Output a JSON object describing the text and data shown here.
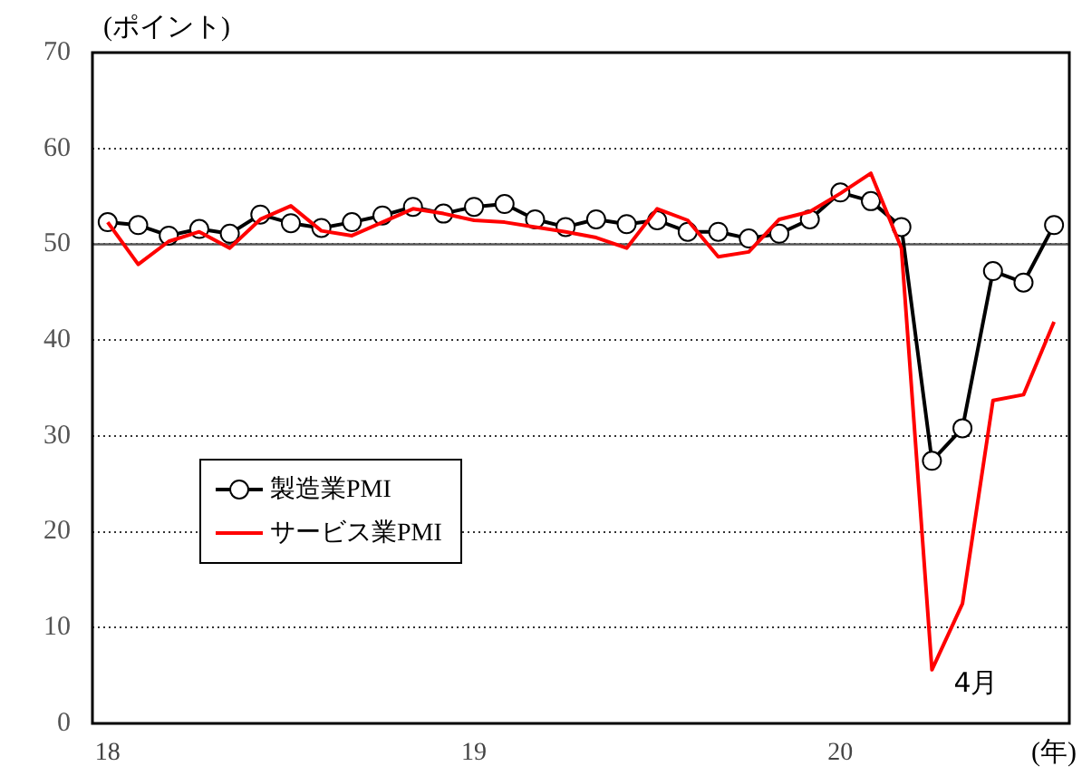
{
  "chart_data": {
    "type": "line",
    "ylabel": "(ポイント)",
    "xlabel": "(年)",
    "categories": [
      "18",
      null,
      null,
      null,
      null,
      null,
      null,
      null,
      null,
      null,
      null,
      null,
      "19",
      null,
      null,
      null,
      null,
      null,
      null,
      null,
      null,
      null,
      null,
      null,
      "20",
      null,
      null,
      null,
      null,
      null,
      null,
      null
    ],
    "ylim": [
      0,
      70
    ],
    "yticks": [
      0,
      10,
      20,
      30,
      40,
      50,
      60,
      70
    ],
    "grid": "y",
    "legend": "center left",
    "ref_lines": [
      {
        "axis": "y",
        "value": 50,
        "color": "#555555",
        "line_style": "solid"
      }
    ],
    "annotations": [
      "4月"
    ],
    "series": [
      {
        "name": "製造業PMI",
        "color": "#000000",
        "marker": "circle",
        "values": [
          52.3,
          52.0,
          50.9,
          51.6,
          51.1,
          53.1,
          52.2,
          51.7,
          52.3,
          53.0,
          53.9,
          53.2,
          53.9,
          54.2,
          52.6,
          51.8,
          52.6,
          52.1,
          52.5,
          51.3,
          51.3,
          50.6,
          51.1,
          52.6,
          55.4,
          54.5,
          51.8,
          27.4,
          30.8,
          47.2,
          46.0,
          52.0
        ]
      },
      {
        "name": "サービス業PMI",
        "color": "#ff0000",
        "marker": "none",
        "values": [
          52.3,
          47.9,
          50.3,
          51.3,
          49.6,
          52.6,
          54.0,
          51.4,
          50.9,
          52.3,
          53.7,
          53.2,
          52.5,
          52.3,
          51.8,
          51.3,
          50.7,
          49.6,
          53.7,
          52.5,
          48.7,
          49.2,
          52.6,
          53.4,
          55.3,
          57.4,
          49.6,
          5.6,
          12.5,
          33.7,
          34.3,
          41.9
        ]
      }
    ]
  }
}
